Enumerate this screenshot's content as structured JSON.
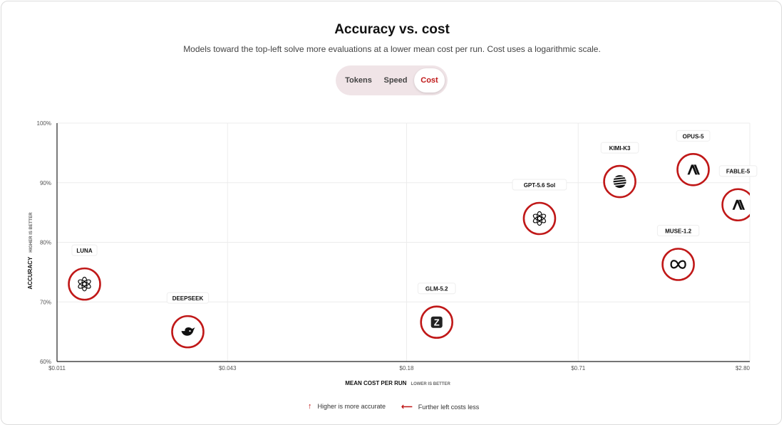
{
  "header": {
    "title": "Accuracy vs. cost",
    "subtitle": "Models toward the top-left solve more evaluations at a lower mean cost per run. Cost uses a logarithmic scale."
  },
  "toggle": {
    "options": [
      "Tokens",
      "Speed",
      "Cost"
    ],
    "selected": "Cost"
  },
  "legend": {
    "accuracy_note": "Higher is more accurate",
    "cost_note": "Further left costs less"
  },
  "colors": {
    "accent": "#c01818",
    "grid": "#ececec",
    "toggle_bg": "#f0e4e7"
  },
  "chart_data": {
    "type": "scatter",
    "title": "Accuracy vs. cost",
    "x_scale": "log",
    "xlabel": "MEAN COST PER RUN",
    "xlabel_note": "LOWER IS BETTER",
    "ylabel": "ACCURACY",
    "ylabel_note": "HIGHER IS BETTER",
    "xlim": [
      0.011,
      2.8
    ],
    "ylim": [
      60,
      100
    ],
    "x_ticks": [
      0.011,
      0.043,
      0.18,
      0.71,
      2.8
    ],
    "x_tick_labels": [
      "$0.011",
      "$0.043",
      "$0.18",
      "$0.71",
      "$2.80"
    ],
    "y_ticks": [
      60,
      70,
      80,
      90,
      100
    ],
    "y_tick_labels": [
      "60%",
      "70%",
      "80%",
      "90%",
      "100%"
    ],
    "grid": true,
    "points": [
      {
        "label": "LUNA",
        "x": 0.0137,
        "y": 73,
        "icon": "openai-icon"
      },
      {
        "label": "DEEPSEEK",
        "x": 0.0313,
        "y": 65,
        "icon": "deepseek-whale-icon"
      },
      {
        "label": "GLM-5.2",
        "x": 0.229,
        "y": 66.6,
        "icon": "zhipu-z-icon"
      },
      {
        "label": "GPT-5.6 Sol",
        "x": 0.521,
        "y": 84,
        "icon": "openai-icon"
      },
      {
        "label": "KIMI-K3",
        "x": 0.99,
        "y": 90.2,
        "icon": "moonshot-globe-icon"
      },
      {
        "label": "OPUS-5",
        "x": 1.78,
        "y": 92.2,
        "icon": "anthropic-icon"
      },
      {
        "label": "FABLE-5",
        "x": 2.55,
        "y": 86.3,
        "icon": "anthropic-icon"
      },
      {
        "label": "MUSE-1.2",
        "x": 1.58,
        "y": 76.3,
        "icon": "meta-infinity-icon"
      }
    ]
  }
}
